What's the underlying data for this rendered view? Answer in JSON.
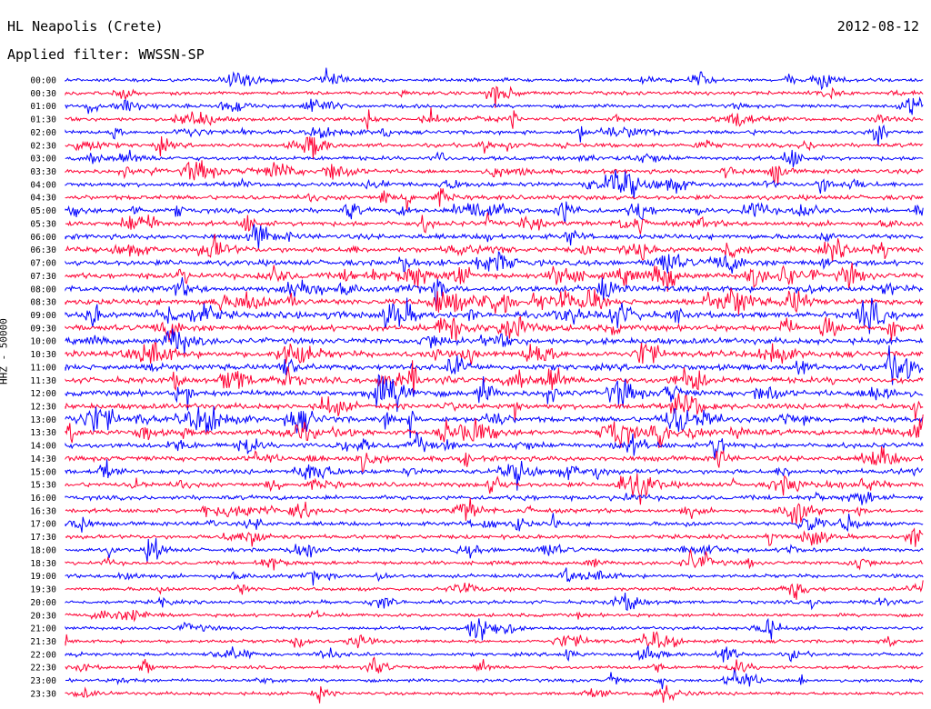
{
  "header": {
    "station": "HL Neapolis (Crete)",
    "date": "2012-08-12",
    "filter": "Applied filter: WWSSN-SP"
  },
  "chart_data": {
    "type": "line",
    "title": "HL Neapolis (Crete)",
    "subtitle": "Applied filter: WWSSN-SP",
    "date": "2012-08-12",
    "ylabel": "HHZ - 50000",
    "xlabel": "",
    "tick_labels": [
      "00:00",
      "00:30",
      "01:00",
      "01:30",
      "02:00",
      "02:30",
      "03:00",
      "03:30",
      "04:00",
      "04:30",
      "05:00",
      "05:30",
      "06:00",
      "06:30",
      "07:00",
      "07:30",
      "08:00",
      "08:30",
      "09:00",
      "09:30",
      "10:00",
      "10:30",
      "11:00",
      "11:30",
      "12:00",
      "12:30",
      "13:00",
      "13:30",
      "14:00",
      "14:30",
      "15:00",
      "15:30",
      "16:00",
      "16:30",
      "17:00",
      "17:30",
      "18:00",
      "18:30",
      "19:00",
      "19:30",
      "20:00",
      "20:30",
      "21:00",
      "21:30",
      "22:00",
      "22:30",
      "23:00",
      "23:30"
    ],
    "series_colors": [
      "#0000ff",
      "#ff0033"
    ],
    "trace_minutes": 30,
    "grid": false,
    "legend": "none"
  }
}
